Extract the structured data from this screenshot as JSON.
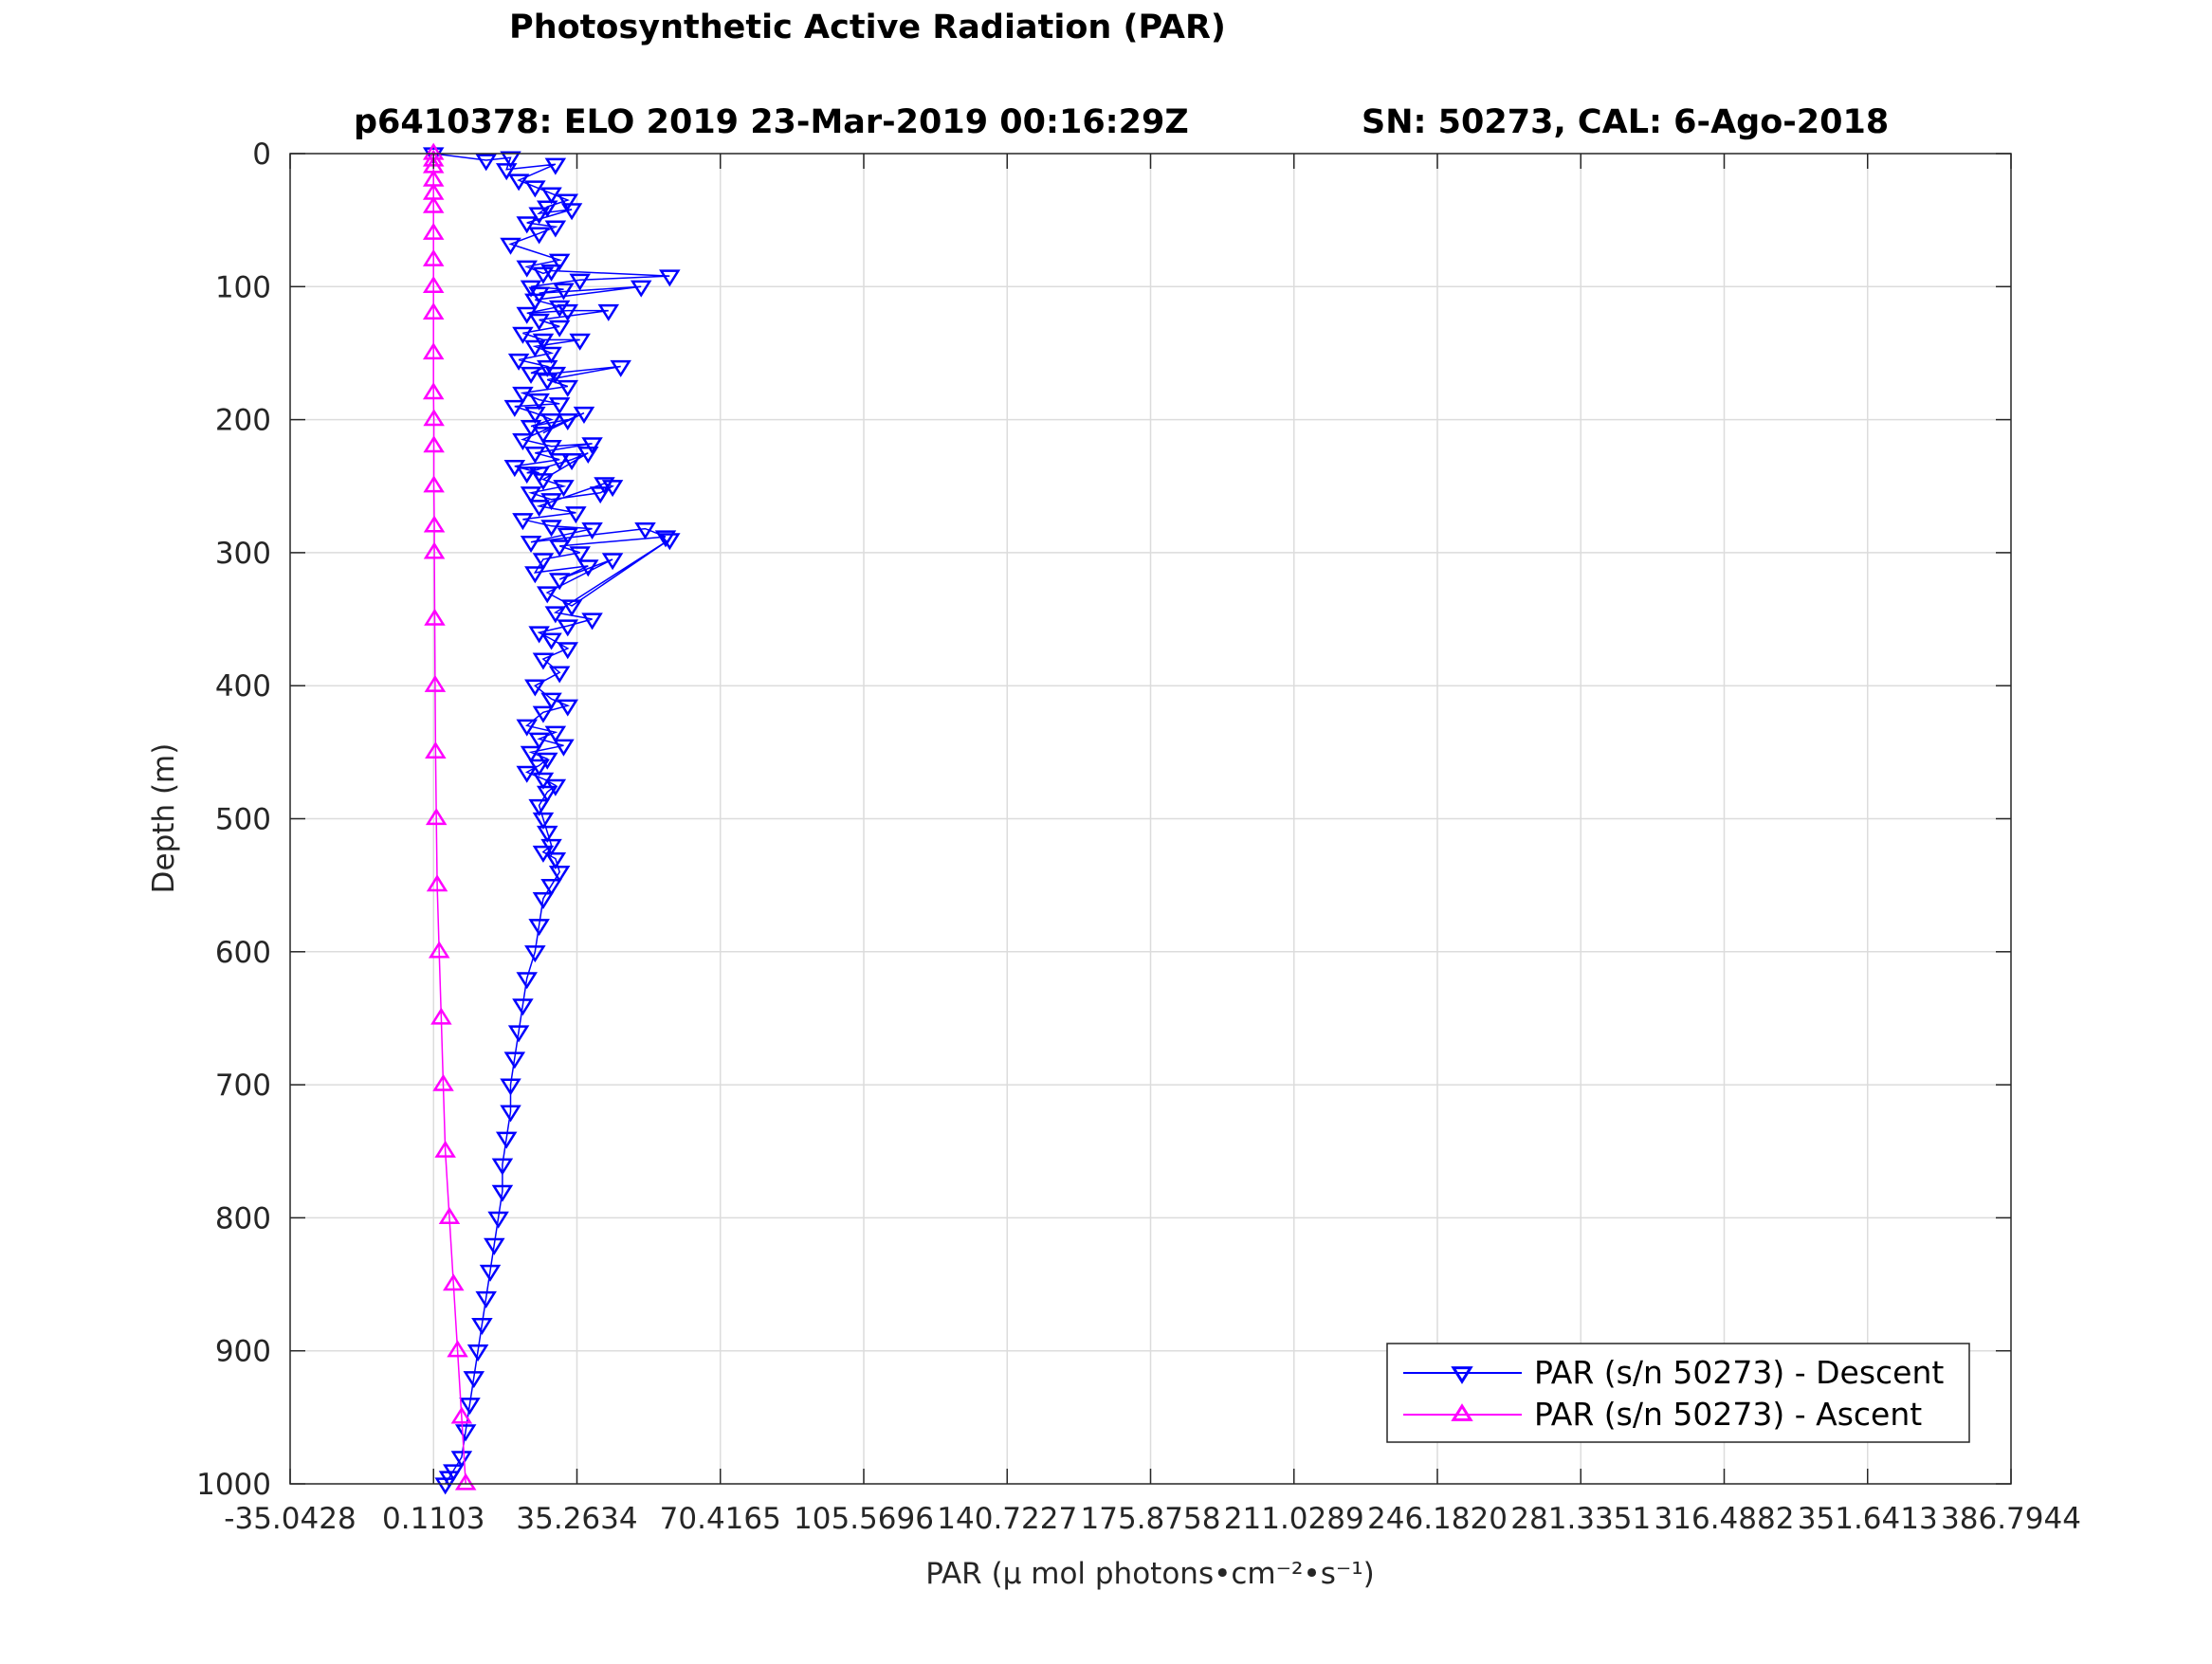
{
  "figure": {
    "title": "Photosynthetic Active Radiation (PAR)",
    "subtitle_left": "p6410378: ELO 2019 23-Mar-2019 00:16:29Z",
    "subtitle_right": "SN: 50273, CAL: 6-Ago-2018"
  },
  "chart_data": {
    "type": "line",
    "xlabel": "PAR (μ mol photons•cm⁻²•s⁻¹)",
    "ylabel": "Depth (m)",
    "xlim": [
      -35.0428,
      386.7944
    ],
    "ylim": [
      0,
      1000
    ],
    "y_reversed": true,
    "grid": true,
    "x_ticks": [
      "-35.0428",
      "0.1103",
      "35.2634",
      "70.4165",
      "105.5696",
      "140.7227",
      "175.8758",
      "211.0289",
      "246.1820",
      "281.3351",
      "316.4882",
      "351.6413",
      "386.7944"
    ],
    "y_ticks": [
      "0",
      "100",
      "200",
      "300",
      "400",
      "500",
      "600",
      "700",
      "800",
      "900",
      "1000"
    ],
    "legend_position": "bottom-right",
    "series": [
      {
        "name": "PAR (s/n 50273) - Descent",
        "color": "#0000ff",
        "marker": "triangle-down",
        "x": [
          0.1,
          13,
          19,
          18,
          30,
          21,
          25,
          29,
          33,
          28,
          26,
          34,
          23,
          30,
          26,
          19,
          31,
          23,
          27,
          29,
          58,
          36,
          24,
          32,
          26,
          51,
          25,
          31,
          23,
          33,
          43,
          26,
          31,
          22,
          27,
          36,
          25,
          29,
          21,
          28,
          24,
          30,
          46,
          28,
          33,
          22,
          26,
          31,
          20,
          25,
          29,
          24,
          33,
          27,
          37,
          22,
          29,
          39,
          25,
          31,
          20,
          26,
          23,
          34,
          38,
          27,
          32,
          24,
          29,
          41,
          44,
          42,
          26,
          35,
          22,
          29,
          39,
          33,
          24,
          52,
          57,
          31,
          36,
          27,
          25,
          38,
          31,
          44,
          28,
          34,
          58,
          30,
          39,
          33,
          26,
          29,
          33,
          27,
          31,
          25,
          29,
          33,
          27,
          23,
          30,
          26,
          32,
          24,
          28,
          26,
          23,
          27,
          30,
          28,
          26,
          27,
          28,
          29,
          27,
          30,
          31,
          29,
          27,
          26,
          25,
          23,
          22,
          21,
          20,
          19,
          19,
          18,
          17,
          17,
          16,
          15,
          14,
          13,
          12,
          11,
          10,
          9,
          8,
          7,
          5,
          4,
          3
        ],
        "y": [
          0,
          5,
          3,
          12,
          8,
          20,
          25,
          30,
          35,
          40,
          45,
          42,
          52,
          55,
          60,
          68,
          80,
          85,
          90,
          88,
          92,
          95,
          100,
          102,
          105,
          100,
          110,
          115,
          120,
          118,
          118,
          125,
          130,
          135,
          140,
          140,
          145,
          150,
          155,
          160,
          165,
          165,
          160,
          170,
          175,
          180,
          185,
          188,
          190,
          195,
          200,
          205,
          200,
          210,
          195,
          215,
          220,
          218,
          225,
          230,
          235,
          240,
          240,
          230,
          225,
          245,
          250,
          255,
          260,
          255,
          250,
          248,
          265,
          270,
          275,
          280,
          282,
          286,
          292,
          282,
          288,
          295,
          300,
          305,
          315,
          310,
          320,
          305,
          330,
          340,
          290,
          345,
          350,
          355,
          360,
          365,
          372,
          380,
          390,
          400,
          410,
          415,
          420,
          430,
          435,
          440,
          445,
          450,
          455,
          460,
          465,
          470,
          475,
          480,
          490,
          500,
          510,
          520,
          525,
          530,
          540,
          550,
          560,
          580,
          600,
          620,
          640,
          660,
          680,
          700,
          720,
          740,
          760,
          780,
          800,
          820,
          840,
          860,
          880,
          900,
          920,
          940,
          960,
          980,
          990,
          995,
          1000
        ]
      },
      {
        "name": "PAR (s/n 50273) - Ascent",
        "color": "#ff00ff",
        "marker": "triangle-up",
        "x": [
          8,
          7,
          6,
          5,
          4,
          3,
          2.5,
          2,
          1.5,
          1,
          0.8,
          0.6,
          0.5,
          0.4,
          0.3,
          0.3,
          0.2,
          0.2,
          0.2,
          0.1,
          0.1,
          0.1,
          0.1,
          0.1,
          0.1,
          0.1,
          0.1,
          0.1,
          0.1,
          0.1,
          0.1
        ],
        "y": [
          1000,
          950,
          900,
          850,
          800,
          750,
          700,
          650,
          600,
          550,
          500,
          450,
          400,
          350,
          300,
          280,
          250,
          220,
          200,
          180,
          150,
          120,
          100,
          80,
          60,
          40,
          30,
          20,
          10,
          5,
          0
        ]
      }
    ]
  },
  "colors": {
    "descent": "#0000ff",
    "ascent": "#ff00ff",
    "grid": "#dcdcdc",
    "axis": "#262626"
  }
}
